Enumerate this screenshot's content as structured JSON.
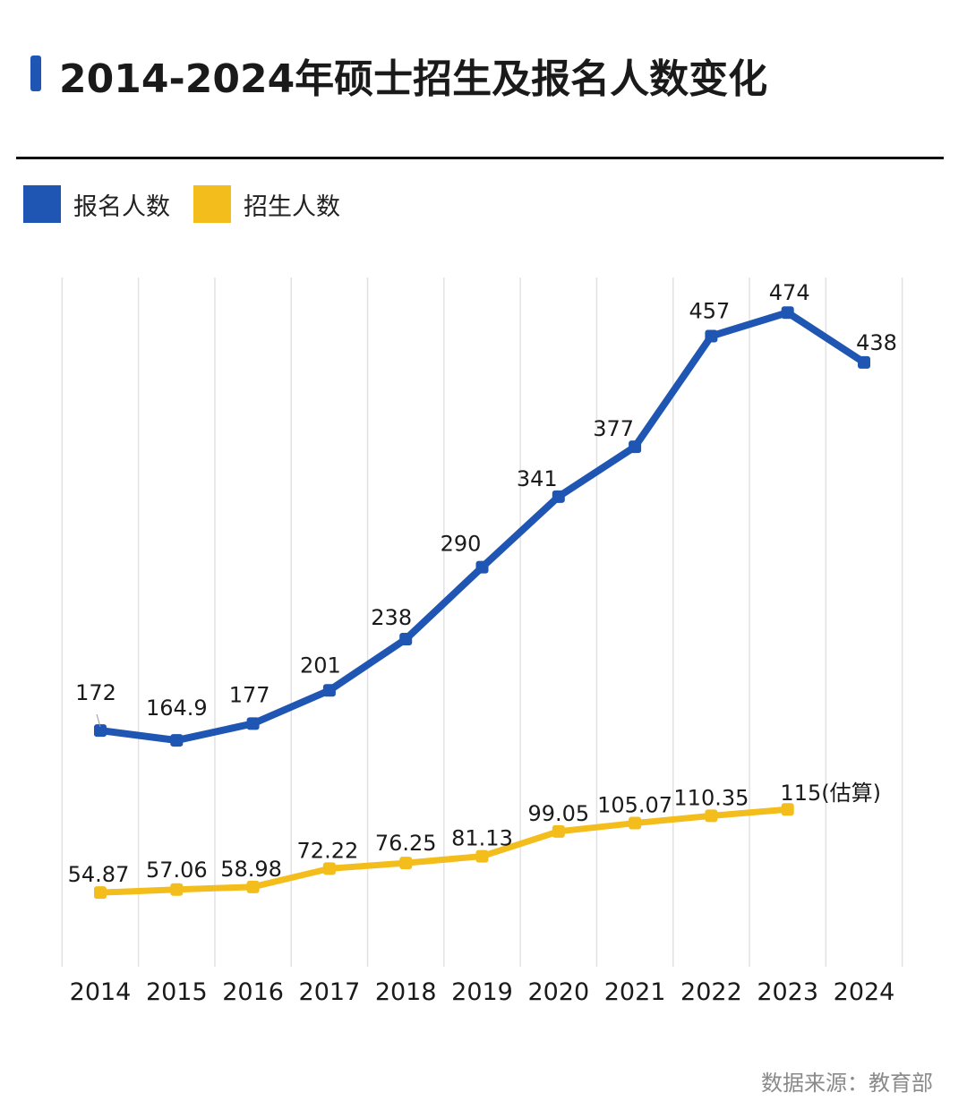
{
  "colors": {
    "registrants": "#1f56b3",
    "admissions": "#f3bd1c",
    "grid": "#e2e2e2"
  },
  "chart_data": {
    "type": "line",
    "title": "2014-2024年硕士招生及报名人数变化",
    "categories": [
      "2014",
      "2015",
      "2016",
      "2017",
      "2018",
      "2019",
      "2020",
      "2021",
      "2022",
      "2023",
      "2024"
    ],
    "series": [
      {
        "name": "报名人数",
        "values": [
          172,
          164.9,
          177,
          201,
          238,
          290,
          341,
          377,
          457,
          474,
          438
        ],
        "labels": [
          "172",
          "164.9",
          "177",
          "201",
          "238",
          "290",
          "341",
          "377",
          "457",
          "474",
          "438"
        ]
      },
      {
        "name": "招生人数",
        "values": [
          54.87,
          57.06,
          58.98,
          72.22,
          76.25,
          81.13,
          99.05,
          105.07,
          110.35,
          115,
          null
        ],
        "labels": [
          "54.87",
          "57.06",
          "58.98",
          "72.22",
          "76.25",
          "81.13",
          "99.05",
          "105.07",
          "110.35",
          "115(估算)",
          null
        ]
      }
    ],
    "ylim": [
      0,
      500
    ],
    "grid": "vertical",
    "legend": "top-left"
  },
  "source": "数据来源：教育部"
}
